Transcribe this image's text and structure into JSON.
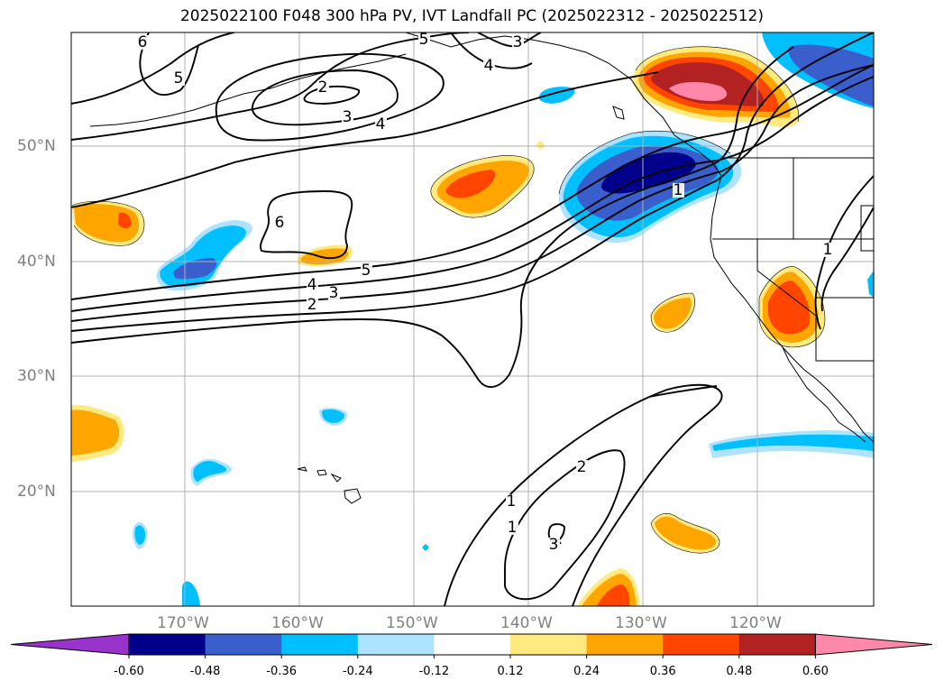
{
  "title": "2025022100 F048 300 hPa PV, IVT Landfall PC (2025022312 - 2025022512)",
  "axes": {
    "lat_labels": [
      "50°N",
      "40°N",
      "30°N",
      "20°N"
    ],
    "lon_labels": [
      "170°W",
      "160°W",
      "150°W",
      "140°W",
      "130°W",
      "120°W"
    ]
  },
  "contour_labels": [
    "6",
    "5",
    "5",
    "3",
    "4",
    "2",
    "3",
    "4",
    "6",
    "5",
    "4",
    "3",
    "2",
    "1",
    "1",
    "2",
    "1",
    "3",
    "1"
  ],
  "colorbar": {
    "ticks": [
      "-0.60",
      "-0.48",
      "-0.36",
      "-0.24",
      "-0.12",
      "0.12",
      "0.24",
      "0.36",
      "0.48",
      "0.60"
    ],
    "colors": [
      "#9933cc",
      "#00008b",
      "#3a5fcd",
      "#00bfff",
      "#ade3ff",
      "#ffffff",
      "#ffea80",
      "#ffa500",
      "#ff4500",
      "#b22222",
      "#ff88aa"
    ]
  }
}
